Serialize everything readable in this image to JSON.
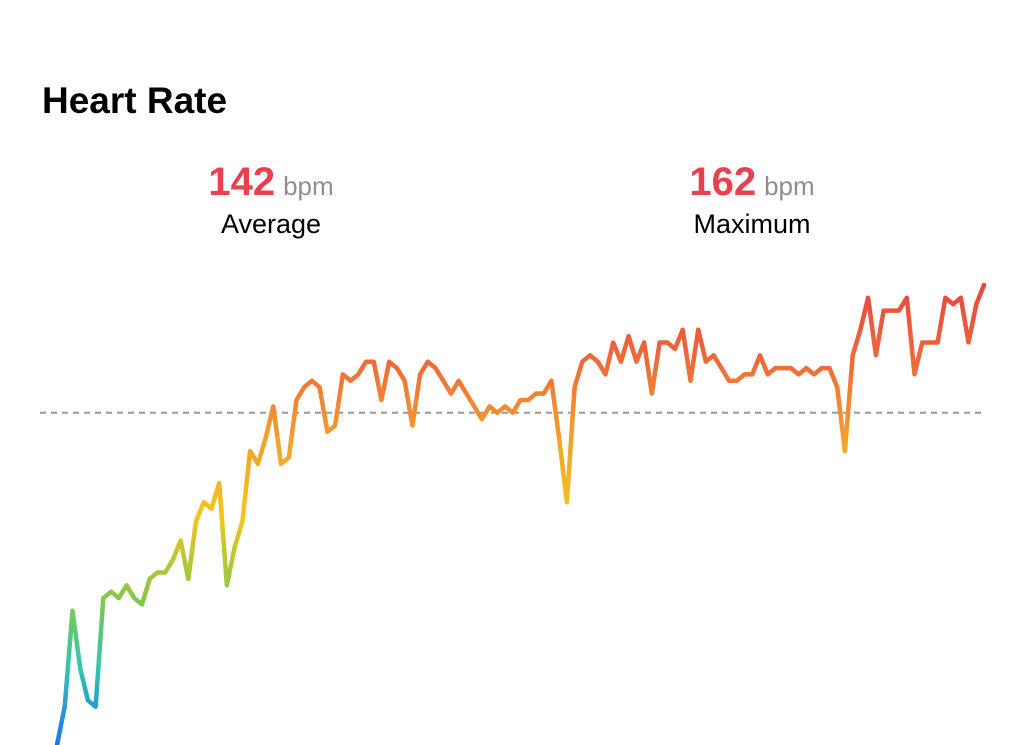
{
  "chart_data": {
    "type": "line",
    "title": "Heart Rate",
    "stats": [
      {
        "value": 142,
        "unit": "bpm",
        "label": "Average"
      },
      {
        "value": 162,
        "unit": "bpm",
        "label": "Maximum"
      }
    ],
    "values": [
      90,
      96,
      111,
      102,
      97,
      96,
      113,
      114,
      113,
      115,
      113,
      112,
      116,
      117,
      117,
      119,
      122,
      116,
      125,
      128,
      127,
      131,
      115,
      121,
      125,
      136,
      134,
      138,
      143,
      134,
      135,
      144,
      146,
      147,
      146,
      139,
      140,
      148,
      147,
      148,
      150,
      150,
      144,
      150,
      149,
      147,
      140,
      148,
      150,
      149,
      147,
      145,
      147,
      145,
      143,
      141,
      143,
      142,
      143,
      142,
      144,
      144,
      145,
      145,
      147,
      138,
      128,
      146,
      150,
      151,
      150,
      148,
      153,
      150,
      154,
      150,
      153,
      145,
      153,
      153,
      152,
      155,
      147,
      155,
      150,
      151,
      149,
      147,
      147,
      148,
      148,
      151,
      148,
      149,
      149,
      149,
      148,
      149,
      148,
      149,
      149,
      146,
      136,
      151,
      155,
      160,
      151,
      158,
      158,
      158,
      160,
      148,
      153,
      153,
      153,
      160,
      159,
      160,
      153,
      159,
      162
    ],
    "colors": [
      "#1f73f2",
      "#2fc7ad",
      "#8fc842",
      "#f4c51c",
      "#f3a02c",
      "#ee6a3a",
      "#e8473e"
    ],
    "reference_line": "average"
  }
}
